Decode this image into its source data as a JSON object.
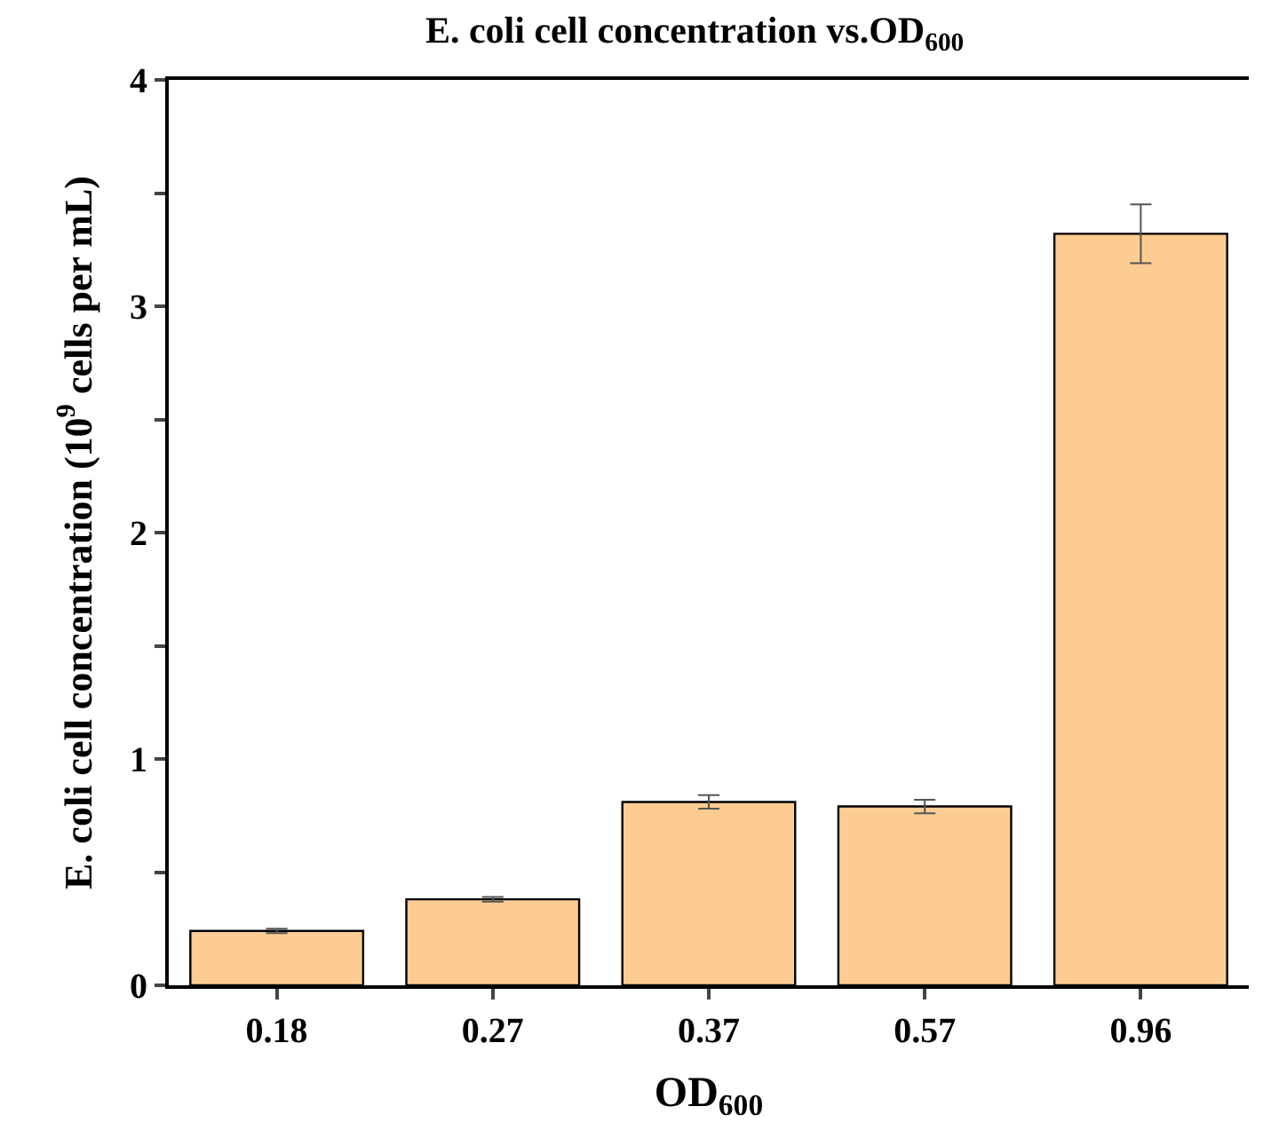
{
  "chart_data": {
    "type": "bar",
    "title": "E. coli cell concentration vs.OD$_{600}$",
    "xlabel": "OD$_{600}$",
    "ylabel": "E. coli cell concentration (10$^{9}$ cells per mL)",
    "categories": [
      "0.18",
      "0.27",
      "0.37",
      "0.57",
      "0.96"
    ],
    "values": [
      0.24,
      0.38,
      0.81,
      0.79,
      3.32
    ],
    "errors": [
      0.01,
      0.01,
      0.03,
      0.03,
      0.13
    ],
    "color": "#fdcc92",
    "ylim": [
      0,
      4
    ],
    "yticks": [
      0,
      {
        "value": 0.5,
        "label": null
      },
      1,
      {
        "value": 1.5,
        "label": null
      },
      2,
      {
        "value": 2.5,
        "label": null
      },
      3,
      {
        "value": 3.5,
        "label": null
      },
      4
    ]
  }
}
